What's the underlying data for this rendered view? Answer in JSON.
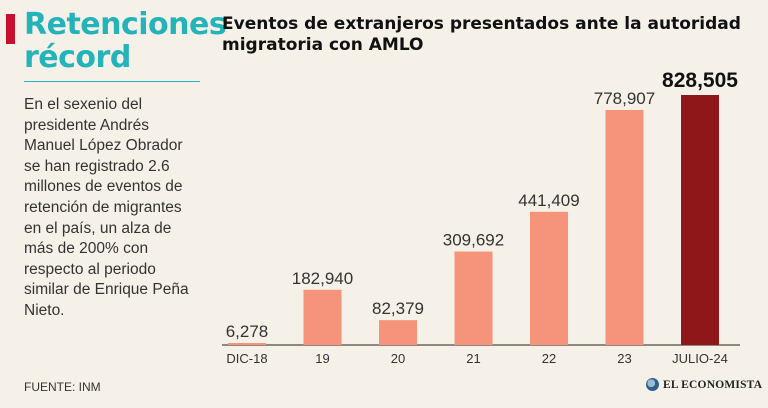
{
  "sidebar": {
    "headline": "Retenciones récord",
    "summary": "En el sexenio del presidente Andrés Manuel López Obrador se han registrado 2.6 millones de eventos de retención de migrantes en el país, un alza de más de 200% con respecto al periodo similar de Enrique Peña Nieto.",
    "source": "FUENTE: INM"
  },
  "brand": {
    "name": "EL ECONOMISTA"
  },
  "colors": {
    "accent": "#23b3b8",
    "bar": "#f5947a",
    "bar_highlight": "#8f1619",
    "marker": "#c8102e"
  },
  "chart_data": {
    "type": "bar",
    "title": "Eventos de extranjeros presentados ante la autoridad migratoria con AMLO",
    "categories": [
      "DIC-18",
      "19",
      "20",
      "21",
      "22",
      "23",
      "JULIO-24"
    ],
    "values": [
      6278,
      182940,
      82379,
      309692,
      441409,
      778907,
      828505
    ],
    "value_labels": [
      "6,278",
      "182,940",
      "82,379",
      "309,692",
      "441,409",
      "778,907",
      "828,505"
    ],
    "highlight_index": 6,
    "ylim": [
      0,
      828505
    ],
    "grid": false,
    "legend": "none"
  }
}
